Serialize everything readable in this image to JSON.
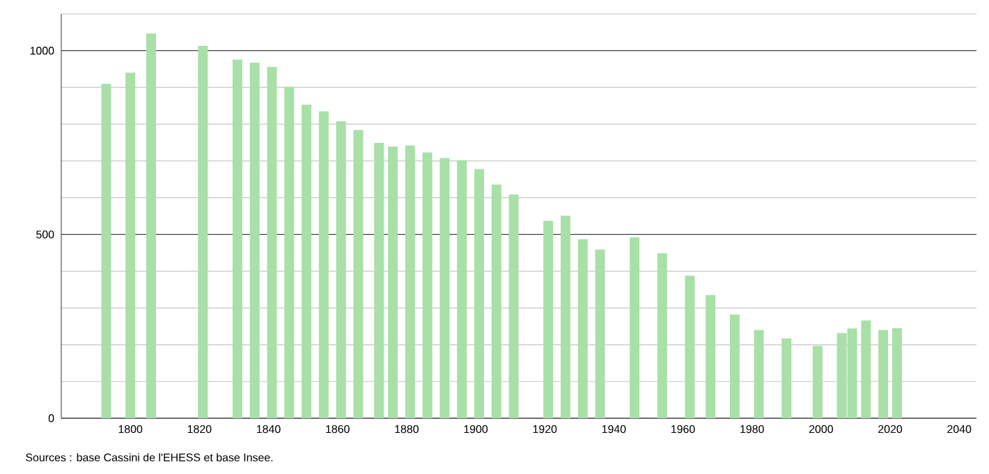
{
  "chart_data": {
    "type": "bar",
    "x": [
      1793,
      1800,
      1806,
      1821,
      1831,
      1836,
      1841,
      1846,
      1851,
      1856,
      1861,
      1866,
      1872,
      1876,
      1881,
      1886,
      1891,
      1896,
      1901,
      1906,
      1911,
      1921,
      1926,
      1931,
      1936,
      1946,
      1954,
      1962,
      1968,
      1975,
      1982,
      1990,
      1999,
      2006,
      2009,
      2013,
      2018,
      2022
    ],
    "values": [
      910,
      940,
      1047,
      1013,
      976,
      967,
      956,
      902,
      853,
      835,
      808,
      784,
      749,
      739,
      742,
      723,
      708,
      702,
      678,
      636,
      609,
      537,
      551,
      487,
      459,
      492,
      449,
      388,
      335,
      282,
      240,
      217,
      197,
      232,
      244,
      266,
      240,
      245
    ],
    "color": "#a8e0a8",
    "xlim": [
      1780,
      2045
    ],
    "ylim": [
      0,
      1100
    ],
    "xticks": [
      1800,
      1820,
      1840,
      1860,
      1880,
      1900,
      1920,
      1940,
      1960,
      1980,
      2000,
      2020,
      2040
    ],
    "yticks": [
      0,
      {
        "value": 100,
        "label": null
      },
      {
        "value": 200,
        "label": null
      },
      {
        "value": 300,
        "label": null
      },
      {
        "value": 400,
        "label": null
      },
      500,
      {
        "value": 600,
        "label": null
      },
      {
        "value": 700,
        "label": null
      },
      {
        "value": 800,
        "label": null
      },
      {
        "value": 900,
        "label": null
      },
      1000,
      {
        "value": 1100,
        "label": null
      }
    ],
    "grid": "y",
    "annotations": [
      "Sources : base Cassini de l'EHESS et base Insee."
    ]
  }
}
